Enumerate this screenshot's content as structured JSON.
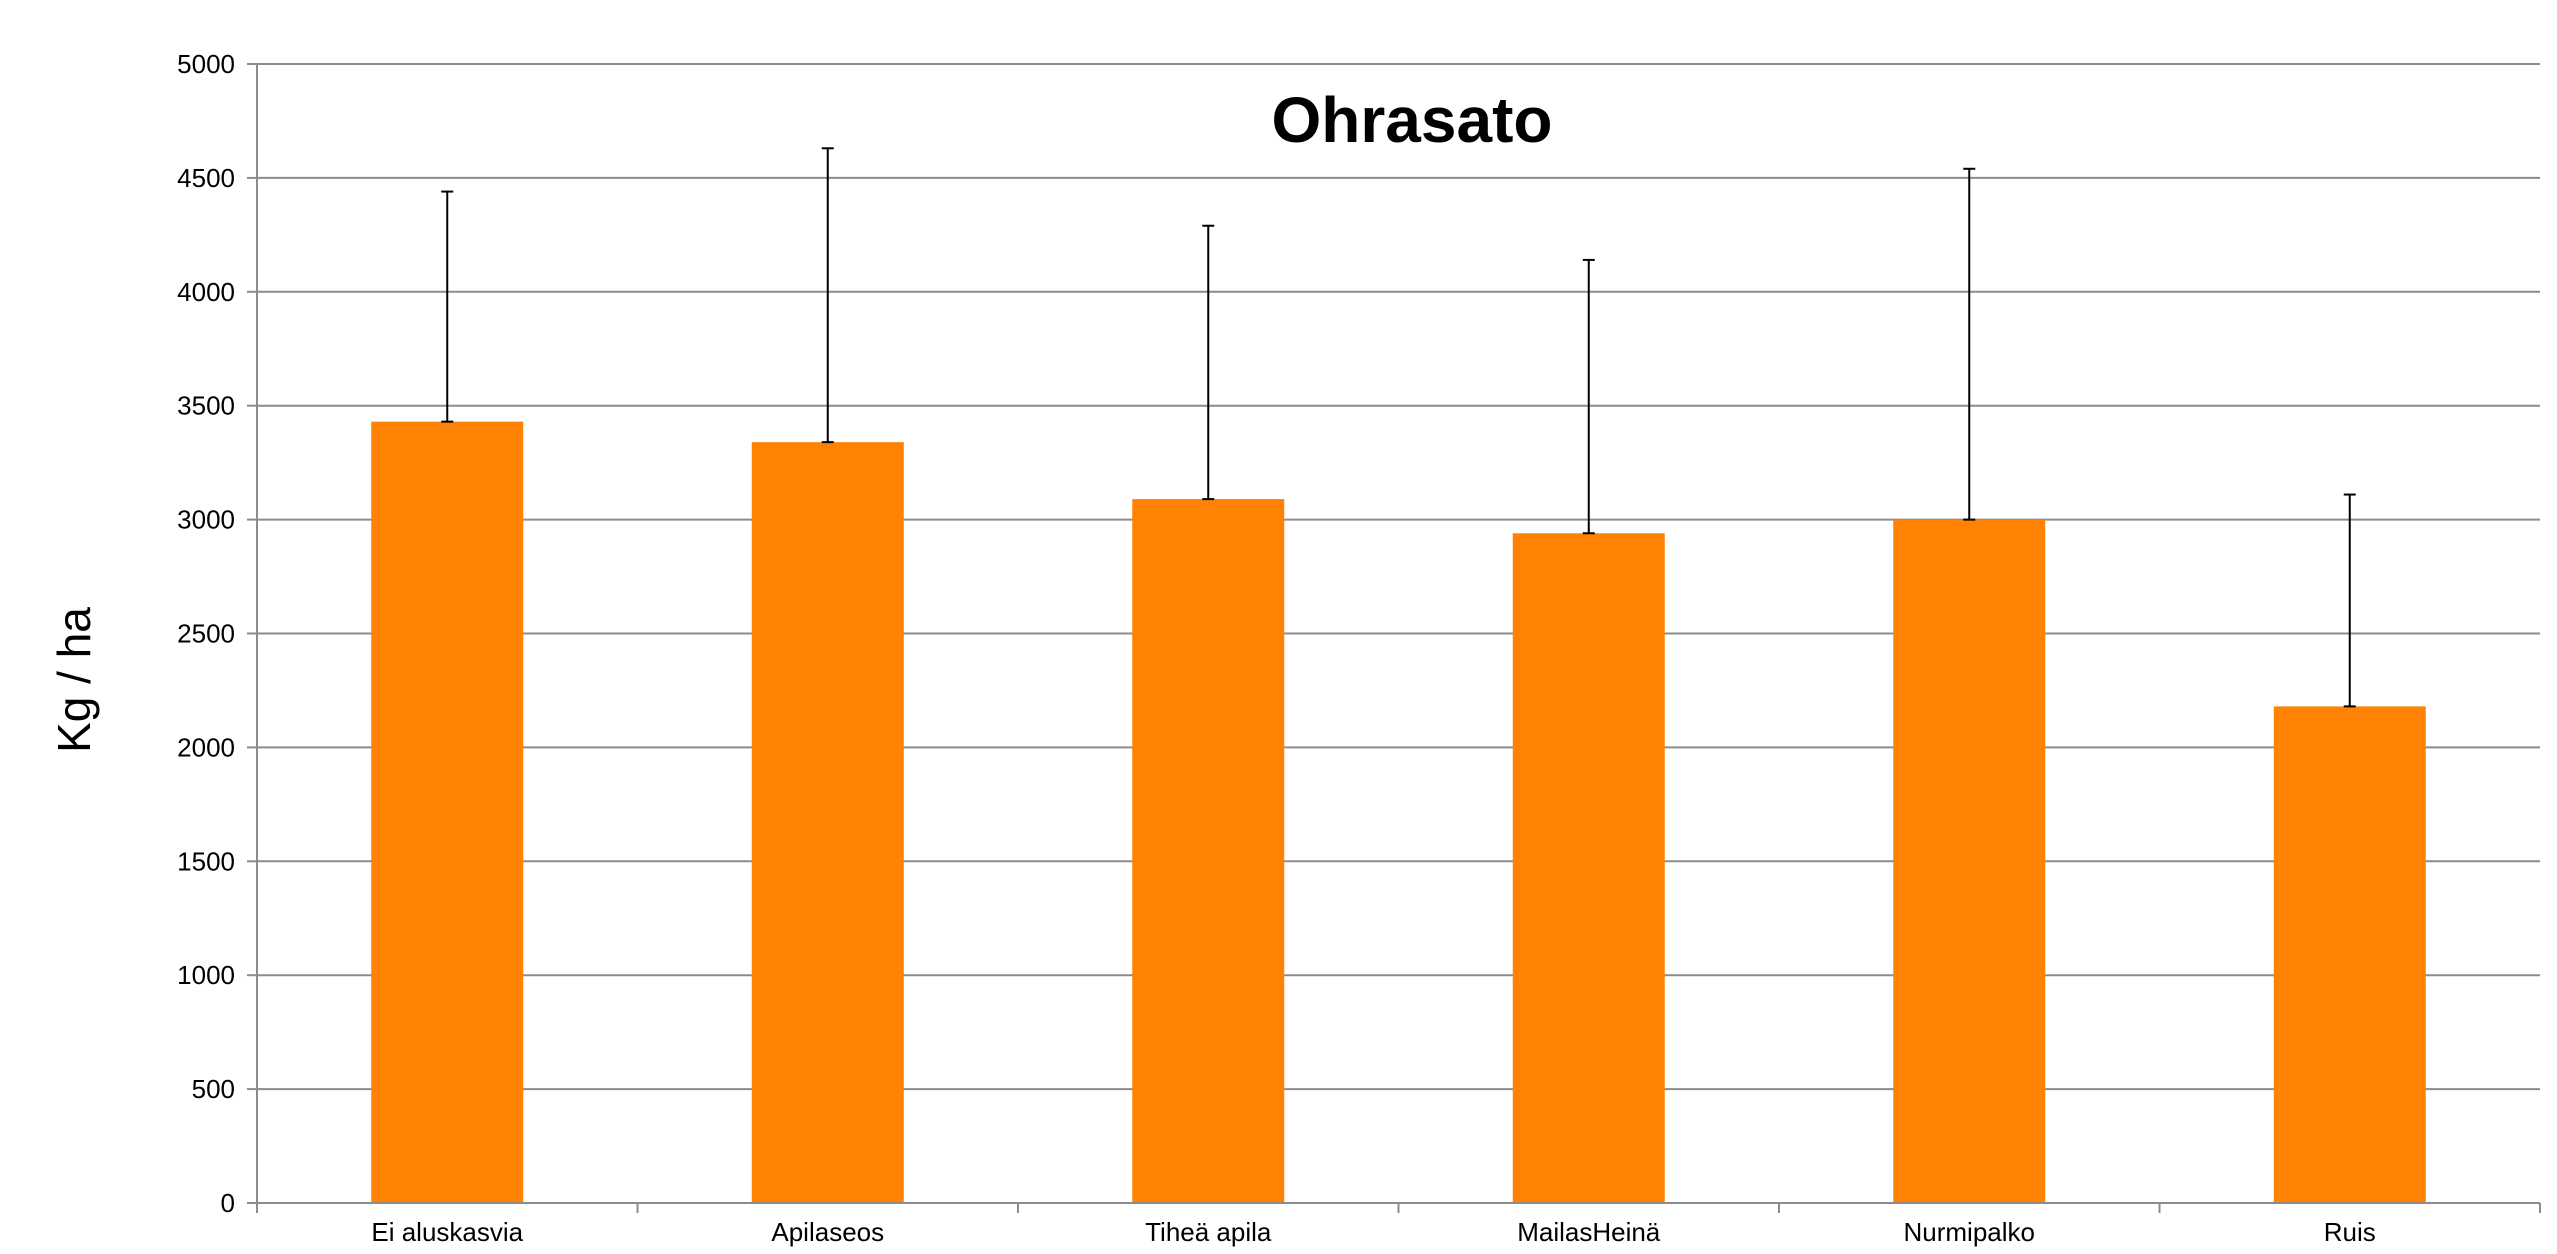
{
  "chart_data": {
    "type": "bar",
    "title": "Ohrasato",
    "xlabel": "",
    "ylabel": "Kg / ha",
    "categories": [
      "Ei aluskasvia",
      "Apilaseos",
      "Tiheä apila",
      "MailasHeinä",
      "Nurmipalko",
      "Ruis"
    ],
    "values": [
      3430,
      3340,
      3090,
      2940,
      3000,
      2180
    ],
    "error_upper": [
      4440,
      4630,
      4290,
      4140,
      4540,
      3110
    ],
    "ylim": [
      0,
      5000
    ],
    "yticks": [
      0,
      500,
      1000,
      1500,
      2000,
      2500,
      3000,
      3500,
      4000,
      4500,
      5000
    ],
    "grid": true,
    "legend": "none",
    "colors": {
      "bar": "#FF8205",
      "grid": "#8C8C8C",
      "axis": "#8C8C8C",
      "error_bar": "#000000"
    }
  }
}
